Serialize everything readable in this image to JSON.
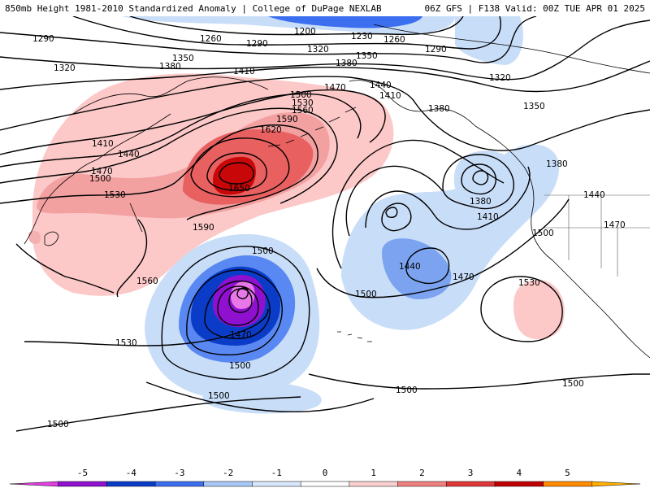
{
  "header": {
    "left": "850mb Height 1981-2010 Standardized Anomaly | College of DuPage NEXLAB",
    "right": "06Z GFS | F138 Valid: 00Z TUE APR 01 2025"
  },
  "contour_labels": {
    "l1200": "1200",
    "l1230": "1230",
    "l1260a": "1260",
    "l1260b": "1260",
    "l1290a": "1290",
    "l1290b": "1290",
    "l1290c": "1290",
    "l1320a": "1320",
    "l1320b": "1320",
    "l1320c": "1320",
    "l1350a": "1350",
    "l1350b": "1350",
    "l1350c": "1350",
    "l1380a": "1380",
    "l1380b": "1380",
    "l1380c": "1380",
    "l1380d": "1380",
    "l1380e": "1380",
    "l1410a": "1410",
    "l1410b": "1410",
    "l1410c": "1410",
    "l1410d": "1410",
    "l1440a": "1440",
    "l1440b": "1440",
    "l1440c": "1440",
    "l1440d": "1440",
    "l1470a": "1470",
    "l1470b": "1470",
    "l1470c": "1470",
    "l1470d": "1470",
    "l1470e": "1470",
    "l1500a": "1500",
    "l1500b": "1500",
    "l1500c": "1500",
    "l1500d": "1500",
    "l1500e": "1500",
    "l1500f": "1500",
    "l1500g": "1500",
    "l1500h": "1500",
    "l1500i": "1500",
    "l1500j": "1500",
    "l1530a": "1530",
    "l1530b": "1530",
    "l1530c": "1530",
    "l1530d": "1530",
    "l1560a": "1560",
    "l1560b": "1560",
    "l1590a": "1590",
    "l1590b": "1590",
    "l1620": "1620",
    "l1650": "1650"
  },
  "colorbar": {
    "ticks": [
      "-5",
      "-4",
      "-3",
      "-2",
      "-1",
      "0",
      "1",
      "2",
      "3",
      "4",
      "5"
    ],
    "colors": [
      "#e040e0",
      "#9010d0",
      "#0a3cc8",
      "#3c6ef0",
      "#a8c8f8",
      "#d8e8fc",
      "#ffffff",
      "#fcd0d0",
      "#f08080",
      "#e03838",
      "#c00000",
      "#ff8c00",
      "#ffb000"
    ]
  }
}
